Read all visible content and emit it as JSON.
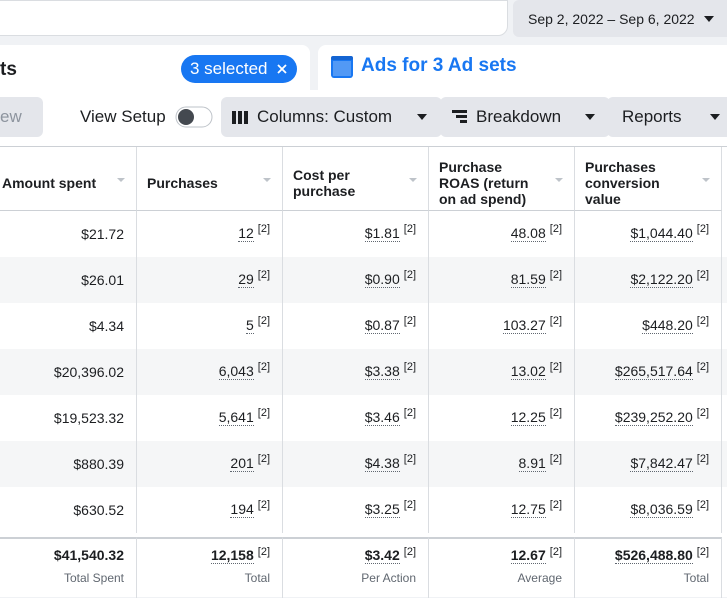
{
  "toolbar": {
    "date_range": "Sep 2, 2022 – Sep 6, 2022",
    "partial_tab": "ts",
    "selected": "3 selected",
    "active_tab": "Ads for 3 Ad sets",
    "partial_button": "ew",
    "view_setup": "View Setup",
    "columns": "Columns: Custom",
    "breakdown": "Breakdown",
    "reports": "Reports"
  },
  "table": {
    "headers": [
      "Amount spent",
      "Purchases",
      "Cost per purchase",
      "Purchase ROAS (return on ad spend)",
      "Purchases conversion value"
    ],
    "note": "[2]",
    "rows": [
      [
        "$21.72",
        "12",
        "$1.81",
        "48.08",
        "$1,044.40"
      ],
      [
        "$26.01",
        "29",
        "$0.90",
        "81.59",
        "$2,122.20"
      ],
      [
        "$4.34",
        "5",
        "$0.87",
        "103.27",
        "$448.20"
      ],
      [
        "$20,396.02",
        "6,043",
        "$3.38",
        "13.02",
        "$265,517.64"
      ],
      [
        "$19,523.32",
        "5,641",
        "$3.46",
        "12.25",
        "$239,252.20"
      ],
      [
        "$880.39",
        "201",
        "$4.38",
        "8.91",
        "$7,842.47"
      ],
      [
        "$630.52",
        "194",
        "$3.25",
        "12.75",
        "$8,036.59"
      ]
    ],
    "totals": [
      {
        "value": "$41,540.32",
        "label": "Total Spent"
      },
      {
        "value": "12,158",
        "label": "Total"
      },
      {
        "value": "$3.42",
        "label": "Per Action"
      },
      {
        "value": "12.67",
        "label": "Average"
      },
      {
        "value": "$526,488.80",
        "label": "Total"
      }
    ]
  }
}
